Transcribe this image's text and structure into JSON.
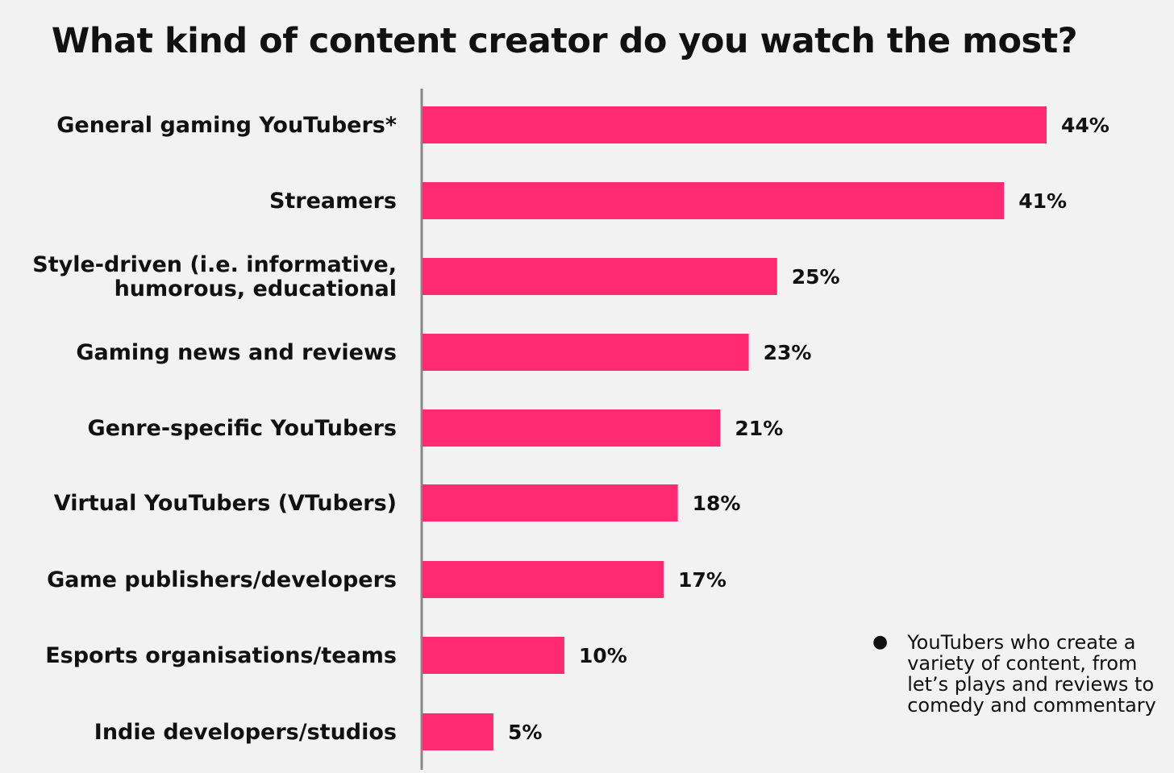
{
  "chart_data": {
    "type": "bar",
    "orientation": "horizontal",
    "title": "What kind of content creator do you watch the most?",
    "categories": [
      [
        "General gaming YouTubers*"
      ],
      [
        "Streamers"
      ],
      [
        "Style-driven (i.e. informative,",
        "humorous, educational"
      ],
      [
        "Gaming news and reviews"
      ],
      [
        "Genre-specific YouTubers"
      ],
      [
        "Virtual YouTubers (VTubers)"
      ],
      [
        "Game publishers/developers"
      ],
      [
        "Esports organisations/teams"
      ],
      [
        "Indie developers/studios"
      ]
    ],
    "values": [
      44,
      41,
      25,
      23,
      21,
      18,
      17,
      10,
      5
    ],
    "value_labels": [
      "44%",
      "41%",
      "25%",
      "23%",
      "21%",
      "18%",
      "17%",
      "10%",
      "5%"
    ],
    "unit": "%",
    "xlim": [
      0,
      44
    ],
    "grid": false,
    "bar_color": "#ff2a72",
    "axis_color": "#888888"
  },
  "footnote": {
    "bullet": "●",
    "text": "YouTubers who create a variety of content, from let’s plays and reviews to comedy and commentary"
  }
}
